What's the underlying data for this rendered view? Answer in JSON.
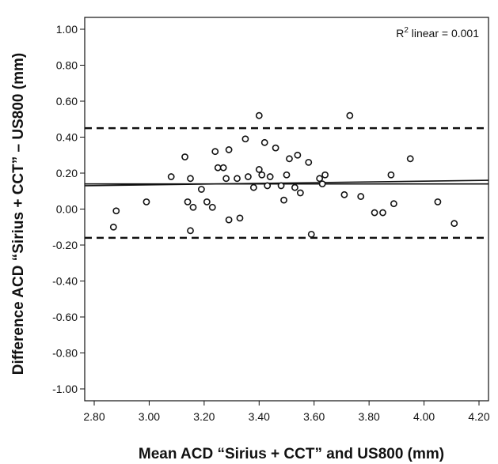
{
  "chart_data": {
    "type": "scatter",
    "xlabel": "Mean ACD “Sirius + CCT” and US800 (mm)",
    "ylabel": "Difference ACD “Sirius + CCT” – US800 (mm)",
    "xlim": [
      2.8,
      4.2
    ],
    "ylim": [
      -1.0,
      1.0
    ],
    "x_ticks": [
      "2.80",
      "3.00",
      "3.20",
      "3.40",
      "3.60",
      "3.80",
      "4.00",
      "4.20"
    ],
    "y_ticks": [
      "1.00",
      "0.80",
      "0.60",
      "0.40",
      "0.20",
      "0.00",
      "-0.20",
      "-0.40",
      "-0.60",
      "-0.80",
      "-1.00"
    ],
    "annotation": {
      "prefix": "R",
      "sup": "2",
      "suffix": " linear = 0.001"
    },
    "reference_lines": {
      "upper_loa": 0.45,
      "lower_loa": -0.16,
      "mean_line_y": 0.14
    },
    "fit_line": {
      "y_at_xmin": 0.13,
      "y_at_xmax": 0.16
    },
    "grid": false,
    "legend": "none",
    "points": [
      {
        "x": 2.87,
        "y": -0.1
      },
      {
        "x": 2.88,
        "y": -0.01
      },
      {
        "x": 2.99,
        "y": 0.04
      },
      {
        "x": 3.08,
        "y": 0.18
      },
      {
        "x": 3.13,
        "y": 0.29
      },
      {
        "x": 3.14,
        "y": 0.04
      },
      {
        "x": 3.15,
        "y": 0.17
      },
      {
        "x": 3.15,
        "y": -0.12
      },
      {
        "x": 3.16,
        "y": 0.01
      },
      {
        "x": 3.19,
        "y": 0.11
      },
      {
        "x": 3.21,
        "y": 0.04
      },
      {
        "x": 3.23,
        "y": 0.01
      },
      {
        "x": 3.24,
        "y": 0.32
      },
      {
        "x": 3.25,
        "y": 0.23
      },
      {
        "x": 3.27,
        "y": 0.23
      },
      {
        "x": 3.28,
        "y": 0.17
      },
      {
        "x": 3.29,
        "y": 0.33
      },
      {
        "x": 3.29,
        "y": -0.06
      },
      {
        "x": 3.32,
        "y": 0.17
      },
      {
        "x": 3.33,
        "y": -0.05
      },
      {
        "x": 3.35,
        "y": 0.39
      },
      {
        "x": 3.36,
        "y": 0.18
      },
      {
        "x": 3.38,
        "y": 0.12
      },
      {
        "x": 3.4,
        "y": 0.52
      },
      {
        "x": 3.4,
        "y": 0.22
      },
      {
        "x": 3.41,
        "y": 0.19
      },
      {
        "x": 3.42,
        "y": 0.37
      },
      {
        "x": 3.43,
        "y": 0.13
      },
      {
        "x": 3.44,
        "y": 0.18
      },
      {
        "x": 3.46,
        "y": 0.34
      },
      {
        "x": 3.48,
        "y": 0.13
      },
      {
        "x": 3.49,
        "y": 0.05
      },
      {
        "x": 3.5,
        "y": 0.19
      },
      {
        "x": 3.51,
        "y": 0.28
      },
      {
        "x": 3.53,
        "y": 0.12
      },
      {
        "x": 3.54,
        "y": 0.3
      },
      {
        "x": 3.55,
        "y": 0.09
      },
      {
        "x": 3.58,
        "y": 0.26
      },
      {
        "x": 3.59,
        "y": -0.14
      },
      {
        "x": 3.62,
        "y": 0.17
      },
      {
        "x": 3.63,
        "y": 0.14
      },
      {
        "x": 3.64,
        "y": 0.19
      },
      {
        "x": 3.71,
        "y": 0.08
      },
      {
        "x": 3.73,
        "y": 0.52
      },
      {
        "x": 3.77,
        "y": 0.07
      },
      {
        "x": 3.82,
        "y": -0.02
      },
      {
        "x": 3.85,
        "y": -0.02
      },
      {
        "x": 3.88,
        "y": 0.19
      },
      {
        "x": 3.89,
        "y": 0.03
      },
      {
        "x": 3.95,
        "y": 0.28
      },
      {
        "x": 4.05,
        "y": 0.04
      },
      {
        "x": 4.11,
        "y": -0.08
      }
    ]
  }
}
